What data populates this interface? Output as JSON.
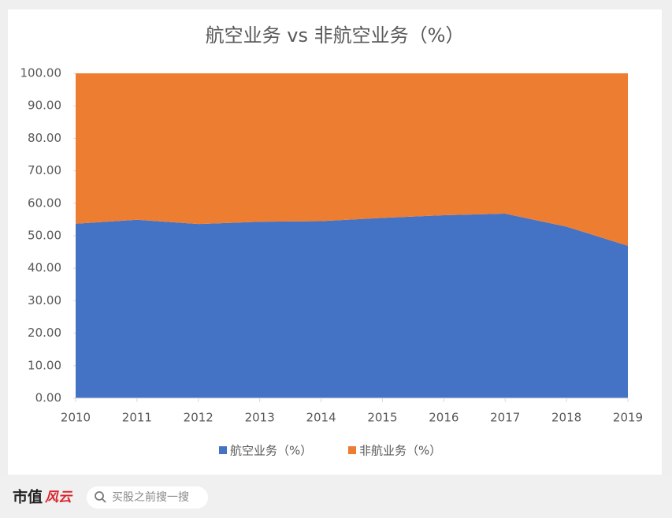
{
  "chart_data": {
    "type": "stacked-area",
    "title": "航空业务 vs 非航空业务（%）",
    "categories": [
      "2010",
      "2011",
      "2012",
      "2013",
      "2014",
      "2015",
      "2016",
      "2017",
      "2018",
      "2019"
    ],
    "series": [
      {
        "name": "航空业务（%）",
        "color": "#4472c4",
        "values": [
          53.7,
          54.9,
          53.6,
          54.3,
          54.5,
          55.5,
          56.3,
          56.8,
          52.8,
          46.9
        ]
      },
      {
        "name": "非航业务（%）",
        "color": "#ed7d31",
        "values": [
          46.3,
          45.1,
          46.4,
          45.7,
          45.5,
          44.5,
          43.7,
          43.2,
          47.2,
          53.1
        ]
      }
    ],
    "ylim": [
      0,
      100
    ],
    "yticks": [
      {
        "value": 0,
        "label": "0.00"
      },
      {
        "value": 10,
        "label": "10.00"
      },
      {
        "value": 20,
        "label": "20.00"
      },
      {
        "value": 30,
        "label": "30.00"
      },
      {
        "value": 40,
        "label": "40.00"
      },
      {
        "value": 50,
        "label": "50.00"
      },
      {
        "value": 60,
        "label": "60.00"
      },
      {
        "value": 70,
        "label": "70.00"
      },
      {
        "value": 80,
        "label": "80.00"
      },
      {
        "value": 90,
        "label": "90.00"
      },
      {
        "value": 100,
        "label": "100.00"
      }
    ],
    "legend": "bottom"
  },
  "footer": {
    "brand": "市值",
    "brand_mark": "风云",
    "search": "买股之前搜一搜"
  }
}
